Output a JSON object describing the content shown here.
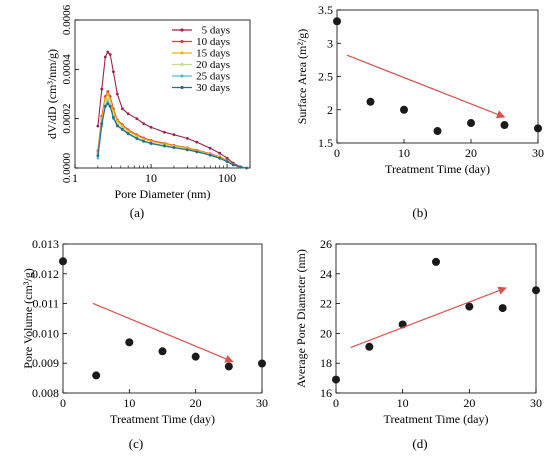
{
  "chart_data": [
    {
      "id": "a",
      "panel_label": "(a)",
      "type": "line",
      "xlabel": "Pore Diameter (nm)",
      "ylabel": "dV/dD (cm³/nm/g)",
      "xscale": "log",
      "xlim": [
        1,
        200
      ],
      "ylim": [
        0,
        0.0006
      ],
      "xticks": [
        1,
        10,
        100
      ],
      "xtick_labels": [
        "1",
        "10",
        "100"
      ],
      "yticks": [
        0,
        0.0002,
        0.0004,
        0.0006
      ],
      "ytick_labels": [
        "0.0000",
        "0.0002",
        "0.0004",
        "0.0006"
      ],
      "legend_position": "top-right",
      "series": [
        {
          "name": "5 days",
          "color": "#a0224c",
          "x": [
            2.0,
            2.25,
            2.5,
            2.7,
            2.9,
            3.2,
            3.6,
            4.2,
            5,
            6.5,
            8,
            10,
            15,
            20,
            30,
            40,
            60,
            80,
            100,
            120,
            150,
            180
          ],
          "y": [
            0.00017,
            0.00032,
            0.00045,
            0.00047,
            0.00046,
            0.00039,
            0.0003,
            0.00024,
            0.00022,
            0.0002,
            0.00018,
            0.000165,
            0.000145,
            0.000135,
            0.00012,
            0.000105,
            8e-05,
            6e-05,
            4e-05,
            2e-05,
            5e-06,
            0.0
          ]
        },
        {
          "name": "10 days",
          "color": "#e63c46",
          "x": [
            2.0,
            2.25,
            2.5,
            2.7,
            2.9,
            3.2,
            3.6,
            4.2,
            5,
            6.5,
            8,
            10,
            15,
            20,
            30,
            40,
            60,
            80,
            100,
            120,
            150,
            180
          ],
          "y": [
            7e-05,
            0.00021,
            0.00029,
            0.00031,
            0.00029,
            0.00024,
            0.000195,
            0.000175,
            0.000155,
            0.000135,
            0.000122,
            0.000112,
            0.0001,
            9.2e-05,
            8.2e-05,
            7.2e-05,
            5.8e-05,
            4.5e-05,
            3e-05,
            1.5e-05,
            4e-06,
            0.0
          ]
        },
        {
          "name": "15 days",
          "color": "#f0b400",
          "x": [
            2.0,
            2.25,
            2.5,
            2.7,
            2.9,
            3.2,
            3.6,
            4.2,
            5,
            6.5,
            8,
            10,
            15,
            20,
            30,
            40,
            60,
            80,
            100,
            120,
            150,
            180
          ],
          "y": [
            6e-05,
            0.0002,
            0.00028,
            0.0003,
            0.00028,
            0.00023,
            0.00019,
            0.00017,
            0.00015,
            0.00013,
            0.000118,
            0.000108,
            9.7e-05,
            9e-05,
            8e-05,
            7e-05,
            5.6e-05,
            4.3e-05,
            2.8e-05,
            1.4e-05,
            3e-06,
            0.0
          ]
        },
        {
          "name": "20 days",
          "color": "#c6dc8c",
          "x": [
            2.0,
            2.25,
            2.5,
            2.7,
            2.9,
            3.2,
            3.6,
            4.2,
            5,
            6.5,
            8,
            10,
            15,
            20,
            30,
            40,
            60,
            80,
            100,
            120,
            150,
            180
          ],
          "y": [
            5e-05,
            0.00018,
            0.00026,
            0.00028,
            0.00026,
            0.00021,
            0.000178,
            0.00016,
            0.000142,
            0.000122,
            0.00011,
            0.0001,
            9e-05,
            8.4e-05,
            7.5e-05,
            6.6e-05,
            5.3e-05,
            4e-05,
            2.6e-05,
            1.3e-05,
            3e-06,
            0.0
          ]
        },
        {
          "name": "25 days",
          "color": "#5abcd2",
          "x": [
            2.0,
            2.25,
            2.5,
            2.7,
            2.9,
            3.2,
            3.6,
            4.2,
            5,
            6.5,
            8,
            10,
            15,
            20,
            30,
            40,
            60,
            80,
            100,
            120,
            150,
            180
          ],
          "y": [
            4e-05,
            0.00017,
            0.00025,
            0.00027,
            0.00025,
            0.0002,
            0.00017,
            0.000155,
            0.000138,
            0.000118,
            0.000107,
            9.8e-05,
            8.8e-05,
            8.2e-05,
            7.3e-05,
            6.5e-05,
            5.2e-05,
            3.9e-05,
            2.5e-05,
            1.2e-05,
            3e-06,
            0.0
          ]
        },
        {
          "name": "30 days",
          "color": "#1f6e8c",
          "x": [
            2.0,
            2.25,
            2.5,
            2.7,
            2.9,
            3.2,
            3.6,
            4.2,
            5,
            6.5,
            8,
            10,
            15,
            20,
            30,
            40,
            60,
            80,
            100,
            120,
            150,
            180
          ],
          "y": [
            5e-05,
            0.00018,
            0.00025,
            0.00026,
            0.00025,
            0.000205,
            0.000172,
            0.000157,
            0.00014,
            0.00012,
            0.000109,
            0.0001,
            9e-05,
            8.3e-05,
            7.4e-05,
            6.6e-05,
            5.2e-05,
            4e-05,
            2.6e-05,
            1.3e-05,
            3e-06,
            0.0
          ]
        }
      ]
    },
    {
      "id": "b",
      "panel_label": "(b)",
      "type": "scatter",
      "xlabel": "Treatment Time (day)",
      "ylabel": "Surface Area (m²/g)",
      "xlim": [
        0,
        30
      ],
      "ylim": [
        1.5,
        3.5
      ],
      "xticks": [
        0,
        10,
        20,
        30
      ],
      "xtick_labels": [
        "0",
        "10",
        "20",
        "30"
      ],
      "yticks": [
        1.5,
        2,
        2.5,
        3,
        3.5
      ],
      "ytick_labels": [
        "1.5",
        "2",
        "2.5",
        "3",
        "3.5"
      ],
      "x": [
        0,
        5,
        10,
        15,
        20,
        25,
        30
      ],
      "y": [
        3.33,
        2.12,
        2.0,
        1.68,
        1.8,
        1.77,
        1.72
      ],
      "trend_arrow": {
        "from": [
          1.5,
          2.82
        ],
        "to": [
          25,
          1.89
        ],
        "color": "#d9534f"
      }
    },
    {
      "id": "c",
      "panel_label": "(c)",
      "type": "scatter",
      "xlabel": "Treatment Time (day)",
      "ylabel": "Pore Volume (cm³/g)",
      "xlim": [
        0,
        30
      ],
      "ylim": [
        0.008,
        0.013
      ],
      "xticks": [
        0,
        10,
        20,
        30
      ],
      "xtick_labels": [
        "0",
        "10",
        "20",
        "30"
      ],
      "yticks": [
        0.008,
        0.009,
        0.01,
        0.011,
        0.012,
        0.013
      ],
      "ytick_labels": [
        "0.008",
        "0.009",
        "0.010",
        "0.011",
        "0.012",
        "0.013"
      ],
      "x": [
        0,
        5,
        10,
        15,
        20,
        25,
        30
      ],
      "y": [
        0.01242,
        0.00859,
        0.0097,
        0.0094,
        0.00922,
        0.00889,
        0.00899
      ],
      "trend_arrow": {
        "from": [
          4.5,
          0.01101
        ],
        "to": [
          25.6,
          0.00905
        ],
        "color": "#d9534f"
      }
    },
    {
      "id": "d",
      "panel_label": "(d)",
      "type": "scatter",
      "xlabel": "Treatment Time (day)",
      "ylabel": "Average Pore Diameter (nm)",
      "xlim": [
        0,
        30
      ],
      "ylim": [
        16,
        26
      ],
      "xticks": [
        0,
        10,
        20,
        30
      ],
      "xtick_labels": [
        "0",
        "10",
        "20",
        "30"
      ],
      "yticks": [
        16,
        18,
        20,
        22,
        24,
        26
      ],
      "ytick_labels": [
        "16",
        "18",
        "20",
        "22",
        "24",
        "26"
      ],
      "x": [
        0,
        5,
        10,
        15,
        20,
        25,
        30
      ],
      "y": [
        16.9,
        19.1,
        20.6,
        24.8,
        21.8,
        21.7,
        22.9
      ],
      "trend_arrow": {
        "from": [
          2.2,
          19.05
        ],
        "to": [
          25.5,
          23.05
        ],
        "color": "#d9534f"
      }
    }
  ]
}
